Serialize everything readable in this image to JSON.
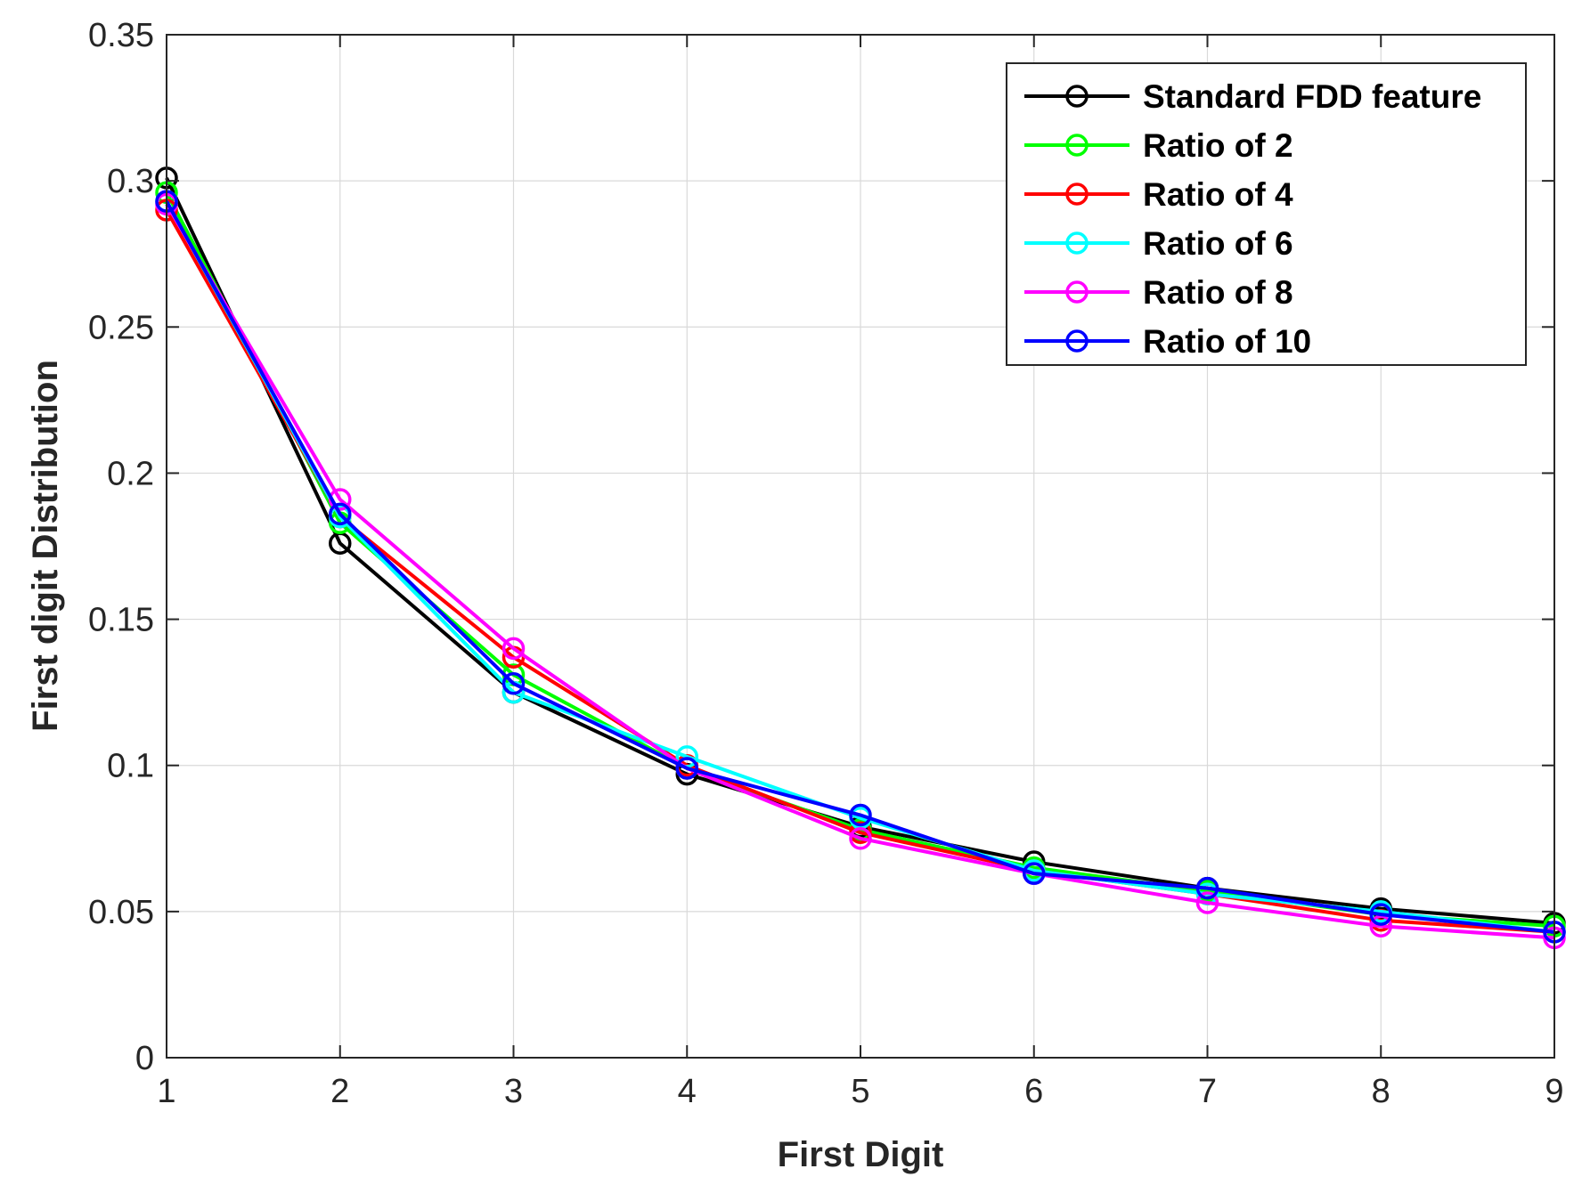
{
  "chart_data": {
    "type": "line",
    "title": "",
    "xlabel": "First Digit",
    "ylabel": "First digit Distribution",
    "x": [
      1,
      2,
      3,
      4,
      5,
      6,
      7,
      8,
      9
    ],
    "xlim": [
      1,
      9
    ],
    "ylim": [
      0,
      0.35
    ],
    "xticks": [
      "1",
      "2",
      "3",
      "4",
      "5",
      "6",
      "7",
      "8",
      "9"
    ],
    "yticks": [
      {
        "value": 0,
        "label": "0"
      },
      {
        "value": 0.05,
        "label": "0.05"
      },
      {
        "value": 0.1,
        "label": "0.1"
      },
      {
        "value": 0.15,
        "label": "0.15"
      },
      {
        "value": 0.2,
        "label": "0.2"
      },
      {
        "value": 0.25,
        "label": "0.25"
      },
      {
        "value": 0.3,
        "label": "0.3"
      },
      {
        "value": 0.35,
        "label": "0.35"
      }
    ],
    "grid": true,
    "legend_position": "top-right",
    "series": [
      {
        "name": "Standard FDD feature",
        "color": "#000000",
        "values": [
          0.301,
          0.176,
          0.125,
          0.097,
          0.079,
          0.067,
          0.058,
          0.051,
          0.046
        ]
      },
      {
        "name": "Ratio of 2",
        "color": "#00ff00",
        "values": [
          0.296,
          0.183,
          0.131,
          0.099,
          0.078,
          0.065,
          0.057,
          0.049,
          0.045
        ]
      },
      {
        "name": "Ratio of 4",
        "color": "#ff0000",
        "values": [
          0.29,
          0.185,
          0.137,
          0.1,
          0.077,
          0.064,
          0.056,
          0.047,
          0.043
        ]
      },
      {
        "name": "Ratio of 6",
        "color": "#00ffff",
        "values": [
          0.293,
          0.185,
          0.125,
          0.103,
          0.082,
          0.064,
          0.056,
          0.05,
          0.043
        ]
      },
      {
        "name": "Ratio of 8",
        "color": "#ff00ff",
        "values": [
          0.292,
          0.191,
          0.14,
          0.099,
          0.075,
          0.063,
          0.053,
          0.045,
          0.041
        ]
      },
      {
        "name": "Ratio of 10",
        "color": "#0000ff",
        "values": [
          0.293,
          0.186,
          0.128,
          0.099,
          0.083,
          0.063,
          0.058,
          0.049,
          0.043
        ]
      }
    ]
  }
}
